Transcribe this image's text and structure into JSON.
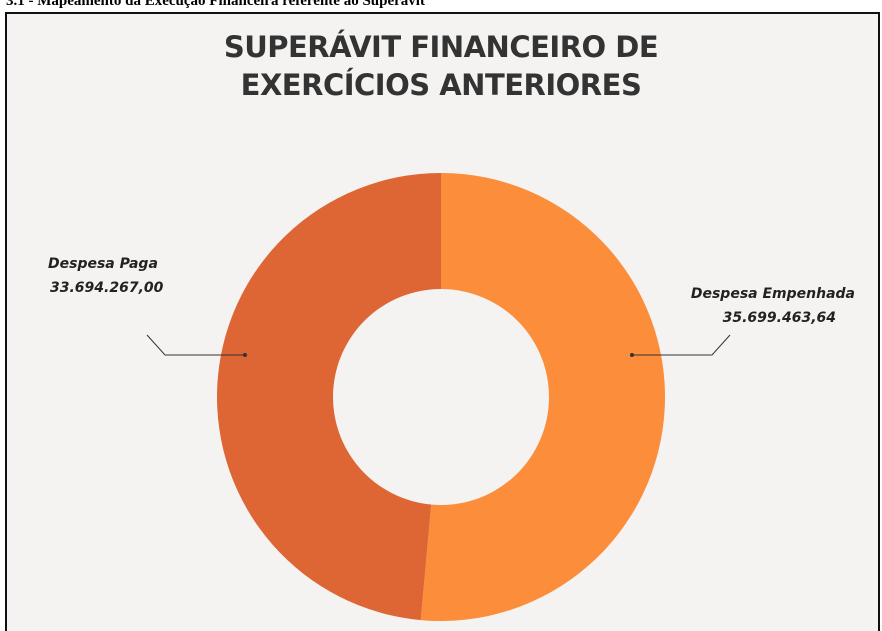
{
  "heading": "3.1 - Mapeamento da Execução Financeira referente ao Superávit",
  "chart_data": {
    "type": "donut",
    "title": "SUPERÁVIT FINANCEIRO DE EXERCÍCIOS ANTERIORES",
    "categories": [
      "Despesa Empenhada",
      "Despesa Paga"
    ],
    "values": [
      35699463.64,
      33694267.0
    ],
    "value_labels": [
      "35.699.463,64",
      "33.694.267,00"
    ],
    "colors": [
      "#fb8d3b",
      "#dd6634"
    ]
  }
}
